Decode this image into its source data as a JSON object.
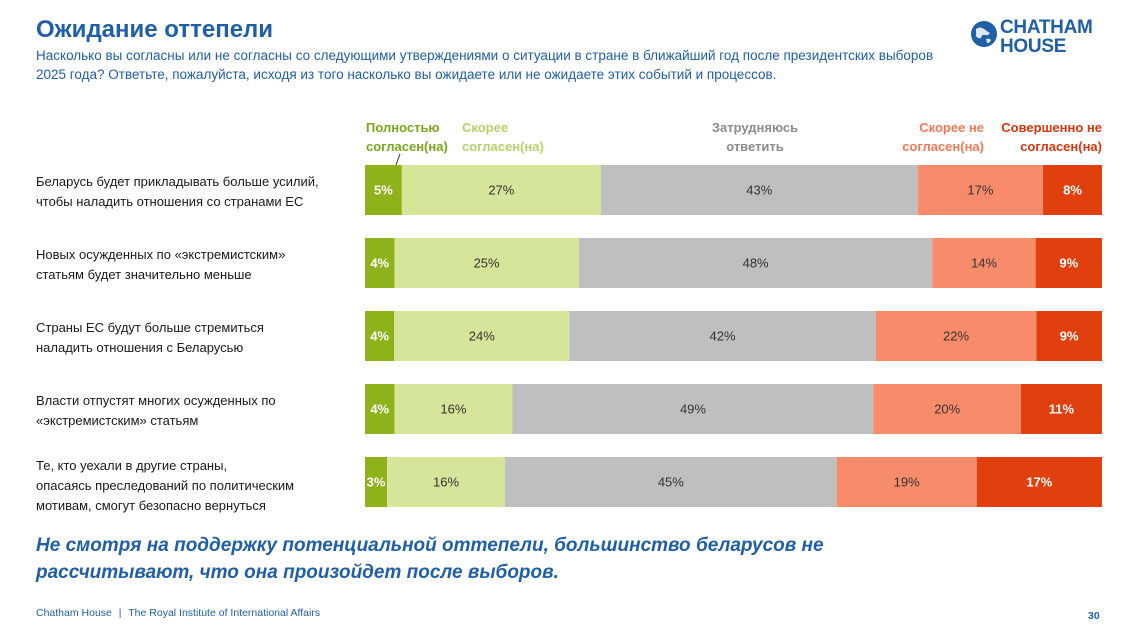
{
  "header": {
    "title": "Ожидание оттепели",
    "subtitle": "Насколько вы согласны или не согласны со следующими утверждениями о ситуации в стране в ближайший год после президентских выборов 2025 года? Ответьте, пожалуйста, исходя из того насколько вы ожидаете или не ожидаете этих событий и процессов."
  },
  "logo": {
    "line1": "CHATHAM",
    "line2": "HOUSE"
  },
  "legend": [
    {
      "line1": "Полностью",
      "line2": "согласен(на)",
      "color": "#7aa61a"
    },
    {
      "line1": "Скорее",
      "line2": "согласен(на)",
      "color": "#b6d36a"
    },
    {
      "line1": "Затрудняюсь",
      "line2": "ответить",
      "color": "#8c8c8c"
    },
    {
      "line1": "Скорее не",
      "line2": "согласен(на)",
      "color": "#f07a55"
    },
    {
      "line1": "Совершенно не",
      "line2": "согласен(на)",
      "color": "#d8360c"
    }
  ],
  "chart_data": {
    "type": "bar",
    "orientation": "horizontal",
    "stacked": true,
    "units": "%",
    "categories": [
      "Беларусь будет прикладывать больше усилий, чтобы наладить отношения со странами ЕС",
      "Новых осужденных по «экстремистским» статьям будет значительно меньше",
      "Страны ЕС будут больше стремиться наладить отношения с Беларусью",
      "Власти отпустят многих осужденных по «экстремистским» статьям",
      "Те, кто уехали в другие страны, опасаясь преследований по политическим мотивам, смогут безопасно вернуться"
    ],
    "category_lines": [
      [
        "Беларусь будет прикладывать больше усилий,",
        "чтобы наладить отношения со странами ЕС"
      ],
      [
        "Новых осужденных по «экстремистским»",
        "статьям будет значительно меньше"
      ],
      [
        "Страны ЕС будут больше стремиться",
        "наладить отношения с Беларусью"
      ],
      [
        "Власти отпустят многих осужденных по",
        "«экстремистским» статьям"
      ],
      [
        "Те, кто уехали в другие страны,",
        "опасаясь преследований по политическим",
        "мотивам, смогут безопасно вернуться"
      ]
    ],
    "series": [
      {
        "name": "Полностью согласен(на)",
        "color": "#8db21a",
        "label_color": "#ffffff",
        "values": [
          5,
          4,
          4,
          4,
          3
        ]
      },
      {
        "name": "Скорее согласен(на)",
        "color": "#d5e69a",
        "label_color": "#333333",
        "values": [
          27,
          25,
          24,
          16,
          16
        ]
      },
      {
        "name": "Затрудняюсь ответить",
        "color": "#bfbfbf",
        "label_color": "#333333",
        "values": [
          43,
          48,
          42,
          49,
          45
        ]
      },
      {
        "name": "Скорее не согласен(на)",
        "color": "#f88c6a",
        "label_color": "#333333",
        "values": [
          17,
          14,
          22,
          20,
          19
        ]
      },
      {
        "name": "Совершенно не согласен(на)",
        "color": "#e0400e",
        "label_color": "#ffffff",
        "values": [
          8,
          9,
          9,
          11,
          17
        ]
      }
    ],
    "value_labels": [
      [
        "5%",
        "27%",
        "43%",
        "17%",
        "8%"
      ],
      [
        "4%",
        "25%",
        "48%",
        "14%",
        "9%"
      ],
      [
        "4%",
        "24%",
        "42%",
        "22%",
        "9%"
      ],
      [
        "4%",
        "16%",
        "49%",
        "20%",
        "11%"
      ],
      [
        "3%",
        "16%",
        "45%",
        "19%",
        "17%"
      ]
    ]
  },
  "conclusion": {
    "line1": "Не смотря на поддержку потенциальной оттепели, большинство беларусов не",
    "line2": "рассчитывают, что она произойдет после выборов."
  },
  "footer": {
    "org": "Chatham House",
    "separator": "|",
    "institute": "The Royal Institute of International Affairs",
    "page_number": "30"
  }
}
